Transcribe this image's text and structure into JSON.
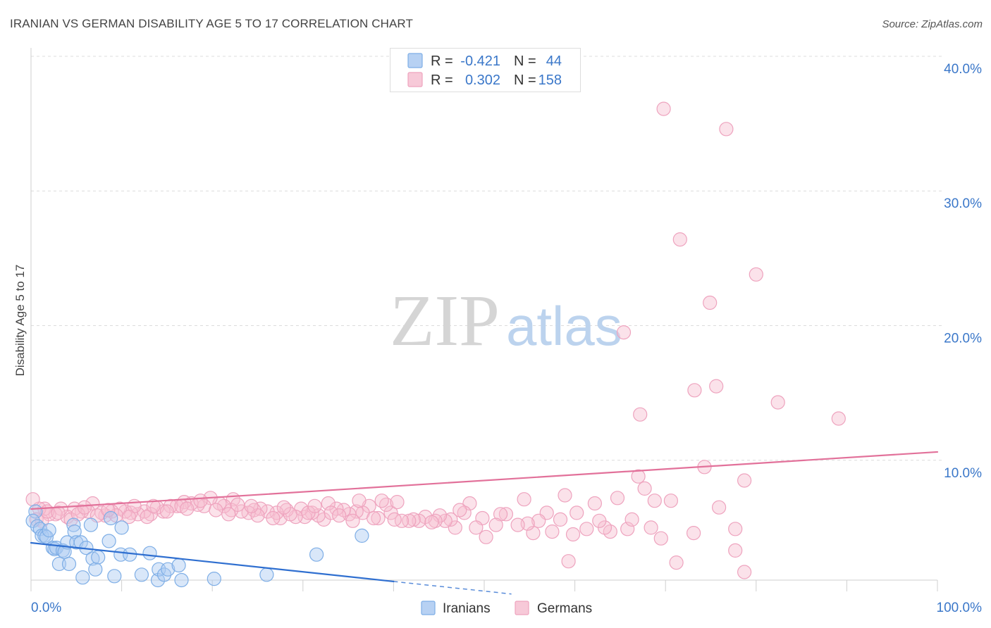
{
  "source": "Source: ZipAtlas.com",
  "watermark": {
    "part1": "ZIP",
    "part2": "atlas"
  },
  "chart_data": {
    "type": "scatter",
    "title": "IRANIAN VS GERMAN DISABILITY AGE 5 TO 17 CORRELATION CHART",
    "xlabel": "",
    "ylabel": "Disability Age 5 to 17",
    "xlim": [
      0,
      100
    ],
    "ylim": [
      1.1,
      40.6
    ],
    "grid": true,
    "x_ticks": [
      {
        "value": 0,
        "label": "0.0%"
      },
      {
        "value": 100,
        "label": "100.0%"
      }
    ],
    "x_tick_marks": [
      0,
      10,
      20,
      30,
      40,
      50,
      60,
      70,
      80,
      90,
      100
    ],
    "y_ticks": [
      {
        "value": 10,
        "label": "10.0%"
      },
      {
        "value": 20,
        "label": "20.0%"
      },
      {
        "value": 30,
        "label": "30.0%"
      },
      {
        "value": 40,
        "label": "40.0%"
      }
    ],
    "legend": {
      "stats_position": "top-center",
      "names_position": "bottom-center",
      "r_label": "R =",
      "n_label": "N ="
    },
    "series": [
      {
        "name": "Iranians",
        "r": "-0.421",
        "n": "44",
        "color": "#7eaee6",
        "fill": "#aac9f1",
        "line_color": "#2f6fd0",
        "trend": {
          "solid": [
            [
              0,
              3.87
            ],
            [
              40,
              1.0
            ]
          ],
          "dashed": [
            [
              40,
              1.0
            ],
            [
              53,
              0.07
            ]
          ]
        },
        "points": [
          [
            0.5,
            6.2
          ],
          [
            0.2,
            5.5
          ],
          [
            0.7,
            5.1
          ],
          [
            1.0,
            4.9
          ],
          [
            1.2,
            4.4
          ],
          [
            1.5,
            4.4
          ],
          [
            1.7,
            4.3
          ],
          [
            2.0,
            4.8
          ],
          [
            2.4,
            3.5
          ],
          [
            2.6,
            3.4
          ],
          [
            2.8,
            3.5
          ],
          [
            3.1,
            2.3
          ],
          [
            3.5,
            3.3
          ],
          [
            3.7,
            3.2
          ],
          [
            4.0,
            3.9
          ],
          [
            4.2,
            2.3
          ],
          [
            4.7,
            5.2
          ],
          [
            4.8,
            4.7
          ],
          [
            5.0,
            3.9
          ],
          [
            5.5,
            3.9
          ],
          [
            5.7,
            1.3
          ],
          [
            6.1,
            3.5
          ],
          [
            6.6,
            5.2
          ],
          [
            6.8,
            2.7
          ],
          [
            7.1,
            1.9
          ],
          [
            7.4,
            2.8
          ],
          [
            8.6,
            4.0
          ],
          [
            8.8,
            5.7
          ],
          [
            9.2,
            1.4
          ],
          [
            9.9,
            3.0
          ],
          [
            10.0,
            5.0
          ],
          [
            10.9,
            3.0
          ],
          [
            12.2,
            1.5
          ],
          [
            13.1,
            3.1
          ],
          [
            14.0,
            1.1
          ],
          [
            14.1,
            1.9
          ],
          [
            14.7,
            1.5
          ],
          [
            15.1,
            1.9
          ],
          [
            16.3,
            2.2
          ],
          [
            16.6,
            1.1
          ],
          [
            20.2,
            1.2
          ],
          [
            26.0,
            1.5
          ],
          [
            31.5,
            3.0
          ],
          [
            36.5,
            4.4
          ]
        ]
      },
      {
        "name": "Germans",
        "r": "0.302",
        "n": "158",
        "color": "#eea3be",
        "fill": "#f6bfd1",
        "line_color": "#e2719a",
        "trend": {
          "solid": [
            [
              0,
              6.38
            ],
            [
              100,
              10.62
            ]
          ]
        },
        "points": [
          [
            69.8,
            36.1
          ],
          [
            76.7,
            34.6
          ],
          [
            71.6,
            26.4
          ],
          [
            80.0,
            23.8
          ],
          [
            74.9,
            21.7
          ],
          [
            65.4,
            19.5
          ],
          [
            75.6,
            15.5
          ],
          [
            73.2,
            15.2
          ],
          [
            82.4,
            14.3
          ],
          [
            67.2,
            13.4
          ],
          [
            89.1,
            13.1
          ],
          [
            74.3,
            9.5
          ],
          [
            67.0,
            8.8
          ],
          [
            78.7,
            8.5
          ],
          [
            67.7,
            7.9
          ],
          [
            64.7,
            7.2
          ],
          [
            58.9,
            7.4
          ],
          [
            70.6,
            7.0
          ],
          [
            68.8,
            7.0
          ],
          [
            54.4,
            7.1
          ],
          [
            75.9,
            6.5
          ],
          [
            73.1,
            4.6
          ],
          [
            69.5,
            4.2
          ],
          [
            68.4,
            5.0
          ],
          [
            65.8,
            4.9
          ],
          [
            66.3,
            5.6
          ],
          [
            63.9,
            4.7
          ],
          [
            63.3,
            5.0
          ],
          [
            62.7,
            5.5
          ],
          [
            62.2,
            6.8
          ],
          [
            61.3,
            4.9
          ],
          [
            60.2,
            6.1
          ],
          [
            59.8,
            4.5
          ],
          [
            59.3,
            2.5
          ],
          [
            58.4,
            5.6
          ],
          [
            57.5,
            4.7
          ],
          [
            56.9,
            6.1
          ],
          [
            56.0,
            5.5
          ],
          [
            55.4,
            4.6
          ],
          [
            54.8,
            5.3
          ],
          [
            53.7,
            5.2
          ],
          [
            52.4,
            6.0
          ],
          [
            51.8,
            6.0
          ],
          [
            51.3,
            5.2
          ],
          [
            50.2,
            4.3
          ],
          [
            49.8,
            5.7
          ],
          [
            49.1,
            5.0
          ],
          [
            48.4,
            6.8
          ],
          [
            47.8,
            6.1
          ],
          [
            46.8,
            5.0
          ],
          [
            46.3,
            5.6
          ],
          [
            45.7,
            5.5
          ],
          [
            45.1,
            5.9
          ],
          [
            44.6,
            5.5
          ],
          [
            43.5,
            5.8
          ],
          [
            42.8,
            5.5
          ],
          [
            42.2,
            5.6
          ],
          [
            41.7,
            5.5
          ],
          [
            40.9,
            5.5
          ],
          [
            39.7,
            6.1
          ],
          [
            39.2,
            6.7
          ],
          [
            38.3,
            5.7
          ],
          [
            37.3,
            6.6
          ],
          [
            36.6,
            6.1
          ],
          [
            35.9,
            6.2
          ],
          [
            35.1,
            6.0
          ],
          [
            34.5,
            6.3
          ],
          [
            33.7,
            6.4
          ],
          [
            32.8,
            6.8
          ],
          [
            32.3,
            5.6
          ],
          [
            31.7,
            5.9
          ],
          [
            31.0,
            6.1
          ],
          [
            30.2,
            5.8
          ],
          [
            29.8,
            6.4
          ],
          [
            29.2,
            5.8
          ],
          [
            28.2,
            6.3
          ],
          [
            27.5,
            5.7
          ],
          [
            27.1,
            6.1
          ],
          [
            26.1,
            6.2
          ],
          [
            25.3,
            6.4
          ],
          [
            24.6,
            6.3
          ],
          [
            24.0,
            6.1
          ],
          [
            23.2,
            6.2
          ],
          [
            22.3,
            7.1
          ],
          [
            22.1,
            6.3
          ],
          [
            21.3,
            6.6
          ],
          [
            20.8,
            6.8
          ],
          [
            19.8,
            7.2
          ],
          [
            19.1,
            6.6
          ],
          [
            18.4,
            6.7
          ],
          [
            17.7,
            6.8
          ],
          [
            16.9,
            6.9
          ],
          [
            16.1,
            6.6
          ],
          [
            15.4,
            6.6
          ],
          [
            14.6,
            6.2
          ],
          [
            13.9,
            6.5
          ],
          [
            13.2,
            6.0
          ],
          [
            12.5,
            6.2
          ],
          [
            11.8,
            6.0
          ],
          [
            11.0,
            6.1
          ],
          [
            10.4,
            6.2
          ],
          [
            9.8,
            6.4
          ],
          [
            8.9,
            6.2
          ],
          [
            8.2,
            5.9
          ],
          [
            7.8,
            6.1
          ],
          [
            6.8,
            6.8
          ],
          [
            6.3,
            6.2
          ],
          [
            5.6,
            6.2
          ],
          [
            4.8,
            6.4
          ],
          [
            4.0,
            5.8
          ],
          [
            3.3,
            6.4
          ],
          [
            2.7,
            6.0
          ],
          [
            2.0,
            6.0
          ],
          [
            1.5,
            6.4
          ],
          [
            0.9,
            6.4
          ],
          [
            0.2,
            7.1
          ],
          [
            0.6,
            5.6
          ],
          [
            1.2,
            5.5
          ],
          [
            77.7,
            3.3
          ],
          [
            78.7,
            1.7
          ],
          [
            71.2,
            2.4
          ],
          [
            77.7,
            4.9
          ],
          [
            4.4,
            5.6
          ],
          [
            5.2,
            6.0
          ],
          [
            7.3,
            5.9
          ],
          [
            9.4,
            5.9
          ],
          [
            11.4,
            6.6
          ],
          [
            12.8,
            5.8
          ],
          [
            15.0,
            6.2
          ],
          [
            16.6,
            6.6
          ],
          [
            18.7,
            7.0
          ],
          [
            20.4,
            6.3
          ],
          [
            22.8,
            6.7
          ],
          [
            25.0,
            5.9
          ],
          [
            26.7,
            5.7
          ],
          [
            28.6,
            6.0
          ],
          [
            30.6,
            6.1
          ],
          [
            33.1,
            6.1
          ],
          [
            35.5,
            5.5
          ],
          [
            37.8,
            5.7
          ],
          [
            40.1,
            5.6
          ],
          [
            44.2,
            5.4
          ],
          [
            47.3,
            6.3
          ],
          [
            38.7,
            7.0
          ],
          [
            40.4,
            6.9
          ],
          [
            1.8,
            6.2
          ],
          [
            3.0,
            6.1
          ],
          [
            5.9,
            6.5
          ],
          [
            8.5,
            6.3
          ],
          [
            10.8,
            5.8
          ],
          [
            13.5,
            6.6
          ],
          [
            17.2,
            6.4
          ],
          [
            21.8,
            6.0
          ],
          [
            24.3,
            6.6
          ],
          [
            27.9,
            6.5
          ],
          [
            31.3,
            6.6
          ],
          [
            34.0,
            5.9
          ],
          [
            36.2,
            7.0
          ]
        ]
      }
    ]
  }
}
